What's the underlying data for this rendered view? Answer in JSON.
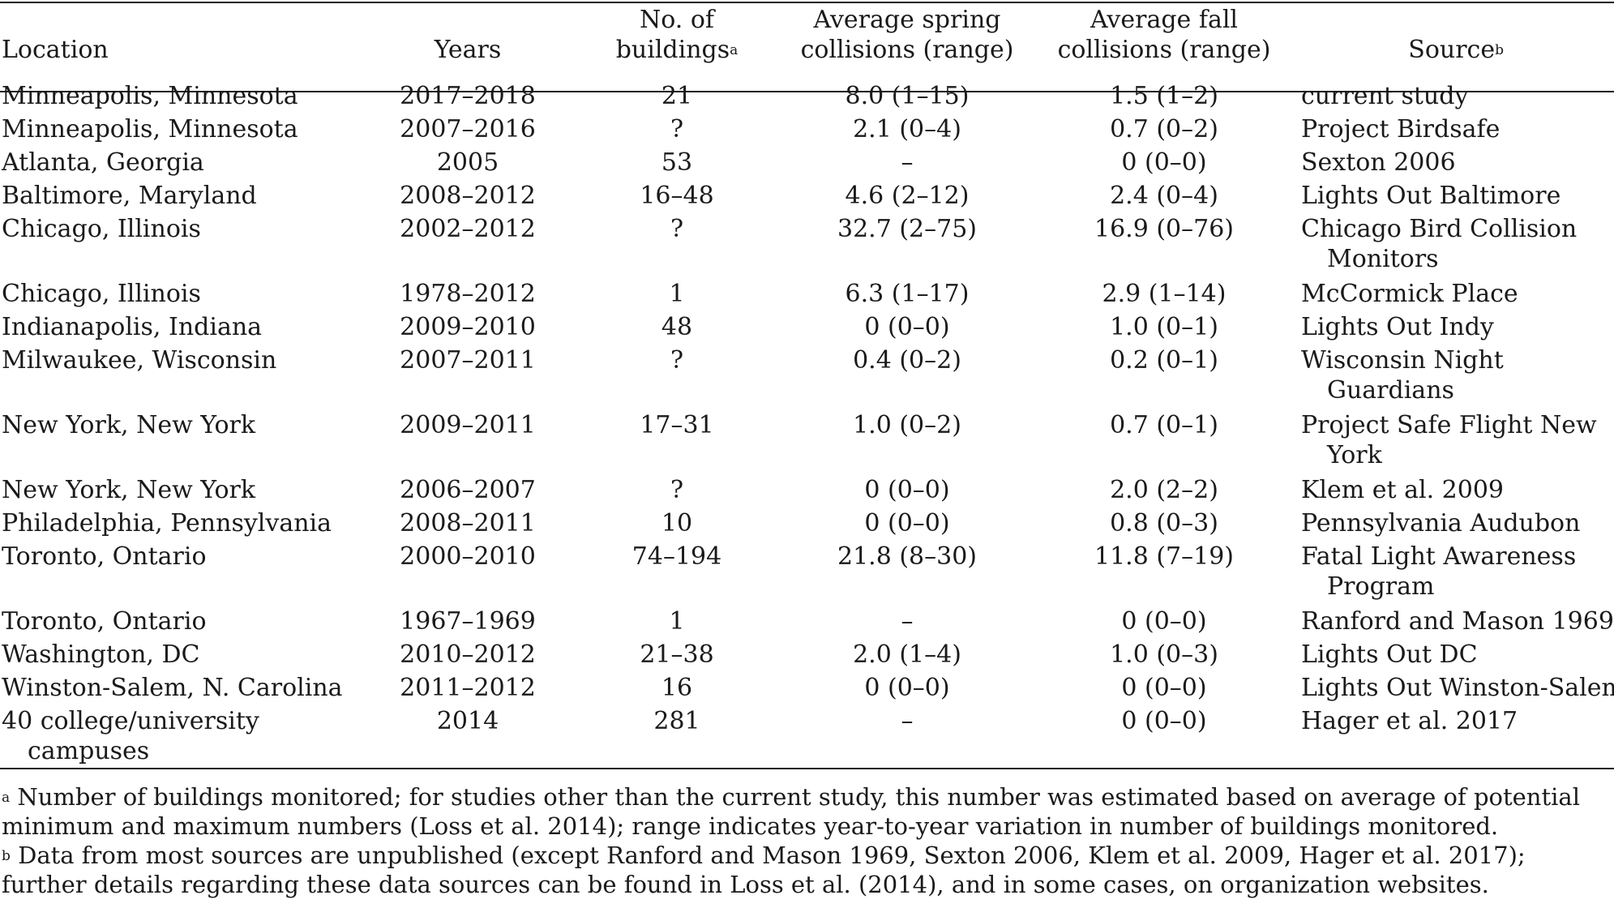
{
  "table": {
    "headers": {
      "location": "Location",
      "years": "Years",
      "buildings_line1": "No. of",
      "buildings_line2": "buildings",
      "buildings_mark": "a",
      "spring_line1": "Average spring",
      "spring_line2": "collisions (range)",
      "fall_line1": "Average fall",
      "fall_line2": "collisions (range)",
      "source": "Source",
      "source_mark": "b"
    },
    "rows": [
      {
        "location": "Minneapolis, Minnesota",
        "years": "2017–2018",
        "buildings": "21",
        "spring": "8.0 (1–15)",
        "fall": "1.5 (1–2)",
        "source": "current study"
      },
      {
        "location": "Minneapolis, Minnesota",
        "years": "2007–2016",
        "buildings": "?",
        "spring": "2.1 (0–4)",
        "fall": "0.7 (0–2)",
        "source": "Project Birdsafe"
      },
      {
        "location": "Atlanta, Georgia",
        "years": "2005",
        "buildings": "53",
        "spring": "–",
        "fall": "0 (0–0)",
        "source": "Sexton 2006"
      },
      {
        "location": "Baltimore, Maryland",
        "years": "2008–2012",
        "buildings": "16–48",
        "spring": "4.6 (2–12)",
        "fall": "2.4 (0–4)",
        "source": "Lights Out Baltimore"
      },
      {
        "location": "Chicago, Illinois",
        "years": "2002–2012",
        "buildings": "?",
        "spring": "32.7 (2–75)",
        "fall": "16.9 (0–76)",
        "source": "Chicago Bird Collision",
        "source_cont": "Monitors"
      },
      {
        "location": "Chicago, Illinois",
        "years": "1978–2012",
        "buildings": "1",
        "spring": "6.3 (1–17)",
        "fall": "2.9 (1–14)",
        "source": "McCormick Place"
      },
      {
        "location": "Indianapolis, Indiana",
        "years": "2009–2010",
        "buildings": "48",
        "spring": "0 (0–0)",
        "fall": "1.0 (0–1)",
        "source": "Lights Out Indy"
      },
      {
        "location": "Milwaukee, Wisconsin",
        "years": "2007–2011",
        "buildings": "?",
        "spring": "0.4 (0–2)",
        "fall": "0.2 (0–1)",
        "source": "Wisconsin Night",
        "source_cont": "Guardians"
      },
      {
        "location": "New York, New York",
        "years": "2009–2011",
        "buildings": "17–31",
        "spring": "1.0 (0–2)",
        "fall": "0.7 (0–1)",
        "source": "Project Safe Flight New",
        "source_cont": "York"
      },
      {
        "location": "New York, New York",
        "years": "2006–2007",
        "buildings": "?",
        "spring": "0 (0–0)",
        "fall": "2.0 (2–2)",
        "source": "Klem et al. 2009"
      },
      {
        "location": "Philadelphia, Pennsylvania",
        "years": "2008–2011",
        "buildings": "10",
        "spring": "0 (0–0)",
        "fall": "0.8 (0–3)",
        "source": "Pennsylvania Audubon"
      },
      {
        "location": "Toronto, Ontario",
        "years": "2000–2010",
        "buildings": "74–194",
        "spring": "21.8 (8–30)",
        "fall": "11.8 (7–19)",
        "source": "Fatal Light Awareness",
        "source_cont": "Program"
      },
      {
        "location": "Toronto, Ontario",
        "years": "1967–1969",
        "buildings": "1",
        "spring": "–",
        "fall": "0 (0–0)",
        "source": "Ranford and Mason 1969"
      },
      {
        "location": "Washington, DC",
        "years": "2010–2012",
        "buildings": "21–38",
        "spring": "2.0 (1–4)",
        "fall": "1.0 (0–3)",
        "source": "Lights Out DC"
      },
      {
        "location": "Winston-Salem, N. Carolina",
        "years": "2011–2012",
        "buildings": "16",
        "spring": "0 (0–0)",
        "fall": "0 (0–0)",
        "source": "Lights Out Winston-Salem"
      },
      {
        "location": "40 college/university",
        "location_cont": "campuses",
        "years": "2014",
        "buildings": "281",
        "spring": "–",
        "fall": "0 (0–0)",
        "source": "Hager et al. 2017"
      }
    ]
  },
  "footnotes": {
    "a_mark": "a",
    "a_text": " Number of buildings monitored; for studies other than the current study, this number was estimated based on average of potential minimum and maximum numbers (Loss et al. 2014); range indicates year-to-year variation in number of buildings monitored.",
    "b_mark": "b",
    "b_text": " Data from most sources are unpublished (except Ranford and Mason 1969, Sexton 2006, Klem et al. 2009, Hager et al. 2017); further details regarding these data sources can be found in Loss et al. (2014), and in some cases, on organization websites."
  }
}
